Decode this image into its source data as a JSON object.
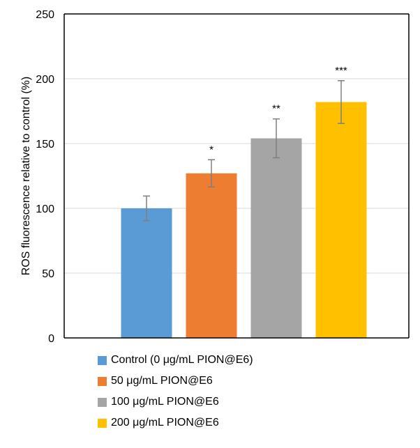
{
  "chart_data": {
    "type": "bar",
    "title": "",
    "xlabel": "",
    "ylabel": "ROS fluorescence relative to control (%)",
    "ylim": [
      0,
      250
    ],
    "yticks": [
      0,
      50,
      100,
      150,
      200,
      250
    ],
    "grid": true,
    "legend_position": "bottom",
    "series": [
      {
        "name": "Control (0 μg/mL PION@E6)",
        "value": 100,
        "error": 9.5,
        "significance": "",
        "color": "#5b9bd5"
      },
      {
        "name": "50 μg/mL PION@E6",
        "value": 127,
        "error": 10.5,
        "significance": "*",
        "color": "#ed7d31"
      },
      {
        "name": "100 μg/mL PION@E6",
        "value": 154,
        "error": 15,
        "significance": "**",
        "color": "#a5a5a5"
      },
      {
        "name": "200 μg/mL PION@E6",
        "value": 182,
        "error": 16.5,
        "significance": "***",
        "color": "#ffc000"
      }
    ]
  }
}
